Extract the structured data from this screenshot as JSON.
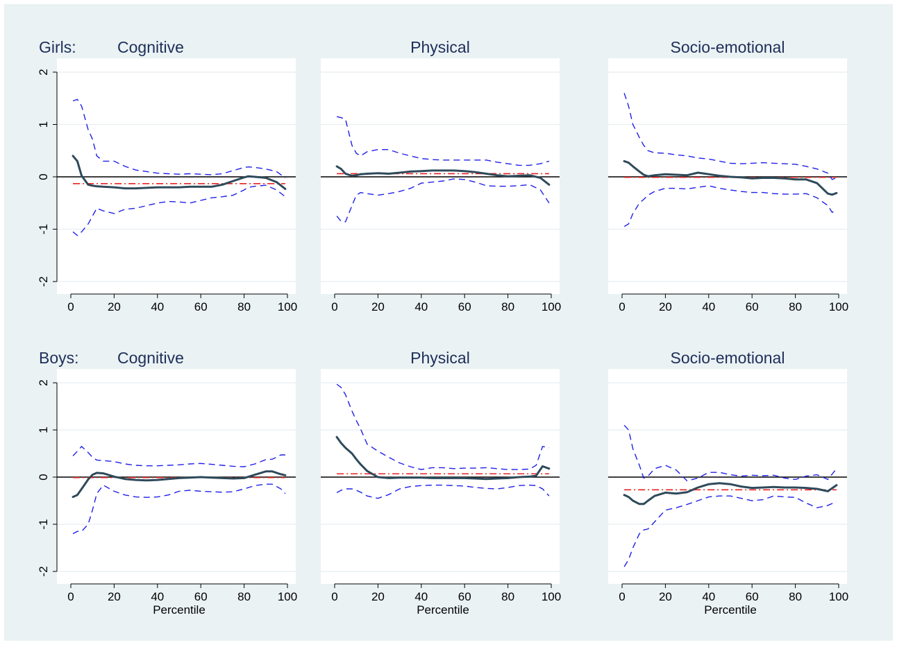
{
  "colors": {
    "background": "#eaf2f3",
    "plot_bg": "#ffffff",
    "grid": "#e8eef0",
    "estimate": "#2e4a5a",
    "ci": "#1f1fe8",
    "mean": "#e82020",
    "zero": "#000000",
    "title": "#1e2e5a"
  },
  "chart_data": [
    {
      "type": "line",
      "row_label": "Girls:",
      "title": "Cognitive",
      "xlabel": "",
      "ylabel": "",
      "xlim": [
        0,
        100
      ],
      "ylim": [
        -2,
        2
      ],
      "xticks": [
        0,
        20,
        40,
        60,
        80,
        100
      ],
      "yticks": [
        -2,
        -1,
        0,
        1,
        2
      ],
      "grid": true,
      "reference_line": 0,
      "x": [
        1,
        3,
        5,
        8,
        10,
        12,
        15,
        20,
        25,
        30,
        35,
        40,
        45,
        50,
        55,
        60,
        65,
        70,
        75,
        80,
        82,
        85,
        90,
        95,
        99
      ],
      "estimate": [
        0.4,
        0.3,
        0.02,
        -0.15,
        -0.17,
        -0.18,
        -0.19,
        -0.2,
        -0.22,
        -0.22,
        -0.21,
        -0.2,
        -0.2,
        -0.2,
        -0.19,
        -0.19,
        -0.19,
        -0.15,
        -0.08,
        -0.01,
        0.01,
        0.0,
        -0.02,
        -0.1,
        -0.23
      ],
      "ci_upper": [
        1.45,
        1.48,
        1.35,
        0.9,
        0.72,
        0.4,
        0.3,
        0.3,
        0.2,
        0.13,
        0.1,
        0.07,
        0.06,
        0.05,
        0.06,
        0.05,
        0.04,
        0.06,
        0.12,
        0.18,
        0.19,
        0.18,
        0.15,
        0.1,
        -0.02
      ],
      "ci_lower": [
        -1.05,
        -1.12,
        -1.05,
        -0.9,
        -0.75,
        -0.6,
        -0.65,
        -0.7,
        -0.62,
        -0.6,
        -0.55,
        -0.5,
        -0.47,
        -0.48,
        -0.5,
        -0.45,
        -0.4,
        -0.38,
        -0.35,
        -0.25,
        -0.2,
        -0.18,
        -0.16,
        -0.25,
        -0.38
      ],
      "mean": -0.13
    },
    {
      "type": "line",
      "row_label": "",
      "title": "Physical",
      "xlabel": "",
      "ylabel": "",
      "xlim": [
        0,
        100
      ],
      "ylim": [
        -2,
        2
      ],
      "xticks": [
        0,
        20,
        40,
        60,
        80,
        100
      ],
      "yticks": [
        -2,
        -1,
        0,
        1,
        2
      ],
      "grid": true,
      "reference_line": 0,
      "x": [
        1,
        3,
        5,
        8,
        10,
        12,
        15,
        20,
        25,
        30,
        35,
        40,
        45,
        50,
        55,
        60,
        65,
        70,
        75,
        80,
        85,
        90,
        95,
        99
      ],
      "estimate": [
        0.2,
        0.15,
        0.06,
        0.02,
        0.03,
        0.05,
        0.06,
        0.07,
        0.06,
        0.08,
        0.1,
        0.11,
        0.12,
        0.12,
        0.12,
        0.11,
        0.09,
        0.06,
        0.03,
        0.01,
        0.02,
        0.03,
        -0.02,
        -0.15
      ],
      "ci_upper": [
        1.15,
        1.13,
        1.1,
        0.6,
        0.45,
        0.4,
        0.48,
        0.52,
        0.52,
        0.45,
        0.4,
        0.35,
        0.33,
        0.32,
        0.32,
        0.32,
        0.32,
        0.32,
        0.28,
        0.25,
        0.22,
        0.22,
        0.25,
        0.3
      ],
      "ci_lower": [
        -0.75,
        -0.85,
        -0.86,
        -0.55,
        -0.35,
        -0.3,
        -0.32,
        -0.35,
        -0.32,
        -0.28,
        -0.22,
        -0.12,
        -0.1,
        -0.08,
        -0.04,
        -0.05,
        -0.1,
        -0.17,
        -0.18,
        -0.18,
        -0.17,
        -0.15,
        -0.25,
        -0.5
      ],
      "mean": 0.06
    },
    {
      "type": "line",
      "row_label": "",
      "title": "Socio-emotional",
      "xlabel": "",
      "ylabel": "",
      "xlim": [
        0,
        100
      ],
      "ylim": [
        -2,
        2
      ],
      "xticks": [
        0,
        20,
        40,
        60,
        80,
        100
      ],
      "yticks": [
        -2,
        -1,
        0,
        1,
        2
      ],
      "grid": true,
      "reference_line": 0,
      "x": [
        1,
        3,
        5,
        8,
        10,
        12,
        15,
        20,
        25,
        30,
        35,
        40,
        45,
        50,
        55,
        60,
        65,
        70,
        75,
        80,
        85,
        90,
        95,
        97,
        99
      ],
      "estimate": [
        0.3,
        0.27,
        0.2,
        0.1,
        0.04,
        0.01,
        0.03,
        0.05,
        0.04,
        0.03,
        0.08,
        0.05,
        0.02,
        0.0,
        -0.01,
        -0.03,
        -0.02,
        -0.02,
        -0.03,
        -0.05,
        -0.05,
        -0.12,
        -0.32,
        -0.34,
        -0.31
      ],
      "ci_upper": [
        1.6,
        1.35,
        1.0,
        0.75,
        0.6,
        0.5,
        0.46,
        0.45,
        0.42,
        0.4,
        0.36,
        0.34,
        0.3,
        0.26,
        0.25,
        0.26,
        0.27,
        0.26,
        0.25,
        0.24,
        0.2,
        0.15,
        0.07,
        -0.05,
        -0.02
      ],
      "ci_lower": [
        -0.95,
        -0.9,
        -0.7,
        -0.5,
        -0.43,
        -0.35,
        -0.28,
        -0.22,
        -0.22,
        -0.23,
        -0.2,
        -0.17,
        -0.22,
        -0.25,
        -0.28,
        -0.3,
        -0.3,
        -0.32,
        -0.33,
        -0.33,
        -0.32,
        -0.4,
        -0.55,
        -0.68,
        -0.63
      ],
      "mean": -0.01
    },
    {
      "type": "line",
      "row_label": "Boys:",
      "title": "Cognitive",
      "xlabel": "Percentile",
      "ylabel": "",
      "xlim": [
        0,
        100
      ],
      "ylim": [
        -2,
        2
      ],
      "xticks": [
        0,
        20,
        40,
        60,
        80,
        100
      ],
      "yticks": [
        -2,
        -1,
        0,
        1,
        2
      ],
      "grid": true,
      "reference_line": 0,
      "x": [
        1,
        3,
        5,
        8,
        10,
        12,
        15,
        20,
        25,
        30,
        35,
        40,
        45,
        50,
        55,
        60,
        65,
        70,
        75,
        80,
        85,
        90,
        93,
        97,
        99
      ],
      "estimate": [
        -0.42,
        -0.38,
        -0.25,
        -0.05,
        0.05,
        0.09,
        0.08,
        0.01,
        -0.04,
        -0.06,
        -0.07,
        -0.06,
        -0.04,
        -0.02,
        -0.01,
        0.0,
        -0.01,
        -0.02,
        -0.03,
        -0.02,
        0.05,
        0.12,
        0.12,
        0.06,
        0.04
      ],
      "ci_upper": [
        0.45,
        0.55,
        0.65,
        0.52,
        0.42,
        0.36,
        0.35,
        0.33,
        0.28,
        0.25,
        0.24,
        0.24,
        0.25,
        0.26,
        0.28,
        0.29,
        0.27,
        0.25,
        0.23,
        0.22,
        0.28,
        0.37,
        0.38,
        0.47,
        0.47
      ],
      "ci_lower": [
        -1.2,
        -1.15,
        -1.15,
        -1.0,
        -0.7,
        -0.35,
        -0.17,
        -0.3,
        -0.38,
        -0.42,
        -0.43,
        -0.42,
        -0.38,
        -0.3,
        -0.28,
        -0.3,
        -0.31,
        -0.32,
        -0.31,
        -0.25,
        -0.18,
        -0.15,
        -0.15,
        -0.25,
        -0.35
      ],
      "mean": -0.01
    },
    {
      "type": "line",
      "row_label": "",
      "title": "Physical",
      "xlabel": "Percentile",
      "ylabel": "",
      "xlim": [
        0,
        100
      ],
      "ylim": [
        -2,
        2
      ],
      "xticks": [
        0,
        20,
        40,
        60,
        80,
        100
      ],
      "yticks": [
        -2,
        -1,
        0,
        1,
        2
      ],
      "grid": true,
      "reference_line": 0,
      "x": [
        1,
        3,
        5,
        8,
        10,
        12,
        15,
        20,
        25,
        30,
        35,
        40,
        45,
        50,
        55,
        60,
        65,
        70,
        75,
        80,
        85,
        90,
        93,
        96,
        99
      ],
      "estimate": [
        0.85,
        0.72,
        0.62,
        0.5,
        0.38,
        0.27,
        0.13,
        0.0,
        -0.02,
        -0.01,
        -0.01,
        -0.01,
        -0.02,
        -0.02,
        -0.02,
        -0.02,
        -0.03,
        -0.04,
        -0.03,
        -0.02,
        0.0,
        0.01,
        0.03,
        0.23,
        0.18
      ],
      "ci_upper": [
        1.97,
        1.9,
        1.75,
        1.4,
        1.2,
        1.02,
        0.7,
        0.55,
        0.42,
        0.3,
        0.22,
        0.16,
        0.2,
        0.2,
        0.18,
        0.19,
        0.19,
        0.2,
        0.18,
        0.16,
        0.16,
        0.17,
        0.25,
        0.65,
        0.62
      ],
      "ci_lower": [
        -0.33,
        -0.28,
        -0.25,
        -0.25,
        -0.28,
        -0.32,
        -0.4,
        -0.45,
        -0.37,
        -0.25,
        -0.2,
        -0.18,
        -0.17,
        -0.17,
        -0.18,
        -0.19,
        -0.22,
        -0.24,
        -0.25,
        -0.22,
        -0.18,
        -0.17,
        -0.18,
        -0.25,
        -0.4
      ],
      "mean": 0.07
    },
    {
      "type": "line",
      "row_label": "",
      "title": "Socio-emotional",
      "xlabel": "Percentile",
      "ylabel": "",
      "xlim": [
        0,
        100
      ],
      "ylim": [
        -2,
        2
      ],
      "xticks": [
        0,
        20,
        40,
        60,
        80,
        100
      ],
      "yticks": [
        -2,
        -1,
        0,
        1,
        2
      ],
      "grid": true,
      "reference_line": 0,
      "x": [
        1,
        3,
        5,
        8,
        10,
        12,
        15,
        20,
        25,
        30,
        35,
        40,
        45,
        50,
        55,
        60,
        65,
        70,
        75,
        80,
        85,
        90,
        95,
        99
      ],
      "estimate": [
        -0.38,
        -0.42,
        -0.5,
        -0.57,
        -0.57,
        -0.5,
        -0.4,
        -0.33,
        -0.35,
        -0.32,
        -0.22,
        -0.15,
        -0.13,
        -0.15,
        -0.2,
        -0.23,
        -0.22,
        -0.21,
        -0.22,
        -0.22,
        -0.23,
        -0.25,
        -0.3,
        -0.17
      ],
      "ci_upper": [
        1.1,
        1.0,
        0.6,
        0.25,
        -0.02,
        0.02,
        0.18,
        0.25,
        0.15,
        -0.08,
        -0.02,
        0.1,
        0.1,
        0.05,
        0.02,
        0.04,
        0.03,
        0.04,
        -0.02,
        -0.05,
        0.02,
        0.05,
        -0.05,
        0.18
      ],
      "ci_lower": [
        -1.9,
        -1.75,
        -1.5,
        -1.2,
        -1.12,
        -1.1,
        -0.95,
        -0.7,
        -0.65,
        -0.58,
        -0.5,
        -0.42,
        -0.4,
        -0.4,
        -0.45,
        -0.5,
        -0.48,
        -0.4,
        -0.42,
        -0.43,
        -0.55,
        -0.65,
        -0.6,
        -0.52
      ],
      "mean": -0.27
    }
  ]
}
